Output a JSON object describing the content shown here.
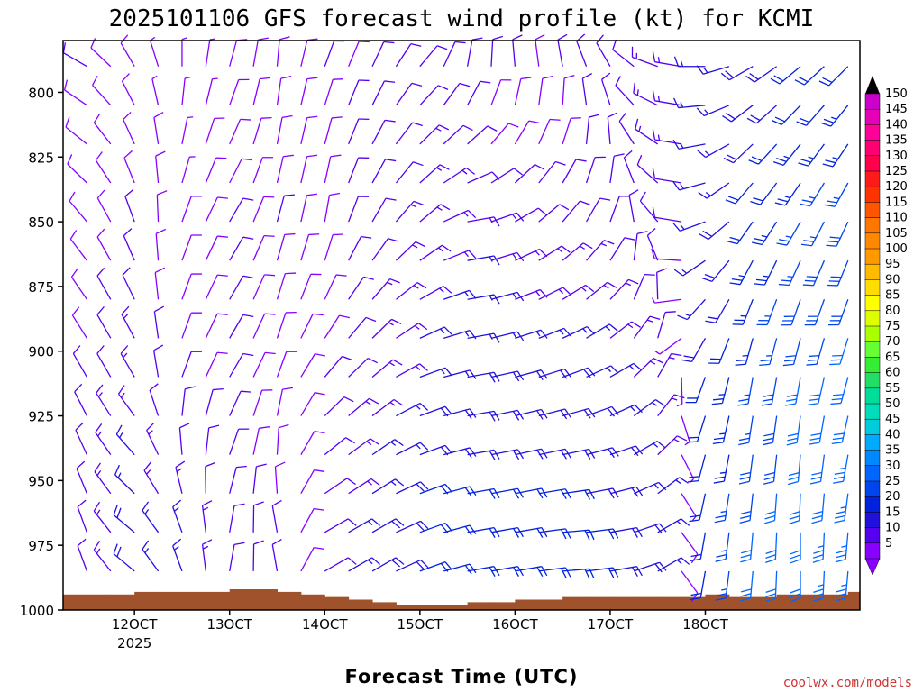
{
  "chart_data": {
    "type": "wind-barb-profile",
    "title": "2025101106 GFS forecast wind profile (kt) for KCMI",
    "xlabel": "Forecast Time (UTC)",
    "ylabel": "",
    "credit": "coolwx.com/models",
    "y_axis": {
      "reversed": true,
      "range": [
        1000,
        780
      ],
      "ticks": [
        {
          "value": 800,
          "label": "800"
        },
        {
          "value": 825,
          "label": "825"
        },
        {
          "value": 850,
          "label": "850"
        },
        {
          "value": 875,
          "label": "875"
        },
        {
          "value": 900,
          "label": "900"
        },
        {
          "value": 925,
          "label": "925"
        },
        {
          "value": 950,
          "label": "950"
        },
        {
          "value": 975,
          "label": "975"
        },
        {
          "value": 1000,
          "label": "1000"
        }
      ]
    },
    "x_axis": {
      "unit": "hours",
      "range": [
        -18,
        183
      ],
      "ticks": [
        {
          "value": 0,
          "label": "12OCT",
          "sublabel": "2025"
        },
        {
          "value": 24,
          "label": "13OCT"
        },
        {
          "value": 48,
          "label": "14OCT"
        },
        {
          "value": 72,
          "label": "15OCT"
        },
        {
          "value": 96,
          "label": "16OCT"
        },
        {
          "value": 120,
          "label": "17OCT"
        },
        {
          "value": 144,
          "label": "18OCT"
        }
      ]
    },
    "barb_spacing": {
      "time_step_hours": 6,
      "time_start": -12,
      "time_end": 180,
      "levels": [
        790,
        805,
        820,
        835,
        850,
        865,
        880,
        895,
        910,
        925,
        940,
        955,
        970,
        985
      ]
    },
    "wind_samples": [
      {
        "time": -12,
        "level": 790,
        "dir": 300,
        "speed": 10
      },
      {
        "time": 0,
        "level": 790,
        "dir": 330,
        "speed": 8
      },
      {
        "time": 12,
        "level": 790,
        "dir": 0,
        "speed": 6
      },
      {
        "time": 24,
        "level": 790,
        "dir": 15,
        "speed": 8
      },
      {
        "time": 36,
        "level": 790,
        "dir": 5,
        "speed": 8
      },
      {
        "time": 48,
        "level": 790,
        "dir": 20,
        "speed": 10
      },
      {
        "time": 60,
        "level": 790,
        "dir": 25,
        "speed": 10
      },
      {
        "time": 72,
        "level": 790,
        "dir": 40,
        "speed": 12
      },
      {
        "time": 84,
        "level": 790,
        "dir": 10,
        "speed": 12
      },
      {
        "time": 96,
        "level": 790,
        "dir": 355,
        "speed": 10
      },
      {
        "time": 108,
        "level": 790,
        "dir": 350,
        "speed": 10
      },
      {
        "time": 120,
        "level": 790,
        "dir": 330,
        "speed": 12
      },
      {
        "time": 132,
        "level": 790,
        "dir": 290,
        "speed": 14
      },
      {
        "time": 144,
        "level": 790,
        "dir": 270,
        "speed": 15
      },
      {
        "time": 156,
        "level": 790,
        "dir": 240,
        "speed": 18
      },
      {
        "time": 168,
        "level": 790,
        "dir": 230,
        "speed": 20
      },
      {
        "time": 180,
        "level": 790,
        "dir": 225,
        "speed": 22
      },
      {
        "time": -12,
        "level": 850,
        "dir": 320,
        "speed": 8
      },
      {
        "time": 0,
        "level": 850,
        "dir": 340,
        "speed": 10
      },
      {
        "time": 12,
        "level": 850,
        "dir": 20,
        "speed": 8
      },
      {
        "time": 24,
        "level": 850,
        "dir": 30,
        "speed": 10
      },
      {
        "time": 36,
        "level": 850,
        "dir": 15,
        "speed": 10
      },
      {
        "time": 48,
        "level": 850,
        "dir": 10,
        "speed": 10
      },
      {
        "time": 60,
        "level": 850,
        "dir": 30,
        "speed": 12
      },
      {
        "time": 72,
        "level": 850,
        "dir": 50,
        "speed": 14
      },
      {
        "time": 84,
        "level": 850,
        "dir": 80,
        "speed": 14
      },
      {
        "time": 96,
        "level": 850,
        "dir": 60,
        "speed": 12
      },
      {
        "time": 108,
        "level": 850,
        "dir": 40,
        "speed": 12
      },
      {
        "time": 120,
        "level": 850,
        "dir": 20,
        "speed": 12
      },
      {
        "time": 132,
        "level": 850,
        "dir": 320,
        "speed": 12
      },
      {
        "time": 144,
        "level": 850,
        "dir": 250,
        "speed": 16
      },
      {
        "time": 156,
        "level": 850,
        "dir": 215,
        "speed": 22
      },
      {
        "time": 168,
        "level": 850,
        "dir": 210,
        "speed": 26
      },
      {
        "time": 180,
        "level": 850,
        "dir": 205,
        "speed": 28
      },
      {
        "time": -12,
        "level": 910,
        "dir": 330,
        "speed": 10
      },
      {
        "time": 0,
        "level": 910,
        "dir": 330,
        "speed": 14
      },
      {
        "time": 12,
        "level": 910,
        "dir": 20,
        "speed": 10
      },
      {
        "time": 24,
        "level": 910,
        "dir": 30,
        "speed": 10
      },
      {
        "time": 36,
        "level": 910,
        "dir": 20,
        "speed": 8
      },
      {
        "time": 48,
        "level": 910,
        "dir": 40,
        "speed": 10
      },
      {
        "time": 60,
        "level": 910,
        "dir": 50,
        "speed": 14
      },
      {
        "time": 72,
        "level": 910,
        "dir": 70,
        "speed": 16
      },
      {
        "time": 84,
        "level": 910,
        "dir": 80,
        "speed": 18
      },
      {
        "time": 96,
        "level": 910,
        "dir": 75,
        "speed": 18
      },
      {
        "time": 108,
        "level": 910,
        "dir": 70,
        "speed": 18
      },
      {
        "time": 120,
        "level": 910,
        "dir": 60,
        "speed": 16
      },
      {
        "time": 132,
        "level": 910,
        "dir": 30,
        "speed": 14
      },
      {
        "time": 144,
        "level": 910,
        "dir": 200,
        "speed": 20
      },
      {
        "time": 156,
        "level": 910,
        "dir": 190,
        "speed": 26
      },
      {
        "time": 168,
        "level": 910,
        "dir": 190,
        "speed": 30
      },
      {
        "time": 180,
        "level": 910,
        "dir": 195,
        "speed": 32
      },
      {
        "time": -12,
        "level": 970,
        "dir": 340,
        "speed": 12
      },
      {
        "time": 0,
        "level": 970,
        "dir": 310,
        "speed": 18
      },
      {
        "time": 12,
        "level": 970,
        "dir": 340,
        "speed": 16
      },
      {
        "time": 24,
        "level": 970,
        "dir": 10,
        "speed": 12
      },
      {
        "time": 36,
        "level": 970,
        "dir": 350,
        "speed": 10
      },
      {
        "time": 48,
        "level": 970,
        "dir": 60,
        "speed": 12
      },
      {
        "time": 60,
        "level": 970,
        "dir": 60,
        "speed": 18
      },
      {
        "time": 72,
        "level": 970,
        "dir": 70,
        "speed": 22
      },
      {
        "time": 84,
        "level": 970,
        "dir": 80,
        "speed": 22
      },
      {
        "time": 96,
        "level": 970,
        "dir": 80,
        "speed": 22
      },
      {
        "time": 108,
        "level": 970,
        "dir": 85,
        "speed": 22
      },
      {
        "time": 120,
        "level": 970,
        "dir": 80,
        "speed": 20
      },
      {
        "time": 132,
        "level": 970,
        "dir": 60,
        "speed": 16
      },
      {
        "time": 144,
        "level": 970,
        "dir": 190,
        "speed": 22
      },
      {
        "time": 156,
        "level": 970,
        "dir": 185,
        "speed": 30
      },
      {
        "time": 168,
        "level": 970,
        "dir": 180,
        "speed": 32
      },
      {
        "time": 180,
        "level": 970,
        "dir": 185,
        "speed": 34
      }
    ],
    "surface_pressure": {
      "times": [
        -18,
        -12,
        -6,
        0,
        6,
        12,
        18,
        24,
        30,
        36,
        42,
        48,
        54,
        60,
        66,
        72,
        78,
        84,
        90,
        96,
        102,
        108,
        114,
        120,
        126,
        132,
        138,
        144,
        150,
        156,
        162,
        168,
        174,
        180,
        183
      ],
      "values": [
        994,
        994,
        994,
        993,
        993,
        993,
        993,
        992,
        992,
        993,
        994,
        995,
        996,
        997,
        998,
        998,
        998,
        997,
        997,
        996,
        996,
        995,
        995,
        995,
        995,
        995,
        995,
        994,
        995,
        995,
        994,
        994,
        994,
        993,
        993
      ],
      "fill": "#a0522d"
    },
    "colorbar": {
      "labels": [
        "150",
        "145",
        "140",
        "135",
        "130",
        "125",
        "120",
        "115",
        "110",
        "105",
        "100",
        "95",
        "90",
        "85",
        "80",
        "75",
        "70",
        "65",
        "60",
        "55",
        "50",
        "45",
        "40",
        "35",
        "30",
        "25",
        "20",
        "15",
        "10",
        "5"
      ],
      "colors": [
        "#cc00cc",
        "#e600b8",
        "#ff0099",
        "#ff0073",
        "#ff004d",
        "#ff1a1a",
        "#ff3300",
        "#ff5500",
        "#ff7700",
        "#ff8800",
        "#ff9900",
        "#ffbb00",
        "#ffdd00",
        "#ffff00",
        "#ddff00",
        "#aaff00",
        "#66ff33",
        "#33ee33",
        "#22dd66",
        "#00dd99",
        "#00ddbb",
        "#00ccdd",
        "#00aaff",
        "#0088ff",
        "#0066ff",
        "#0044ee",
        "#0022dd",
        "#2211dd",
        "#5500ee",
        "#8800ff"
      ]
    }
  }
}
